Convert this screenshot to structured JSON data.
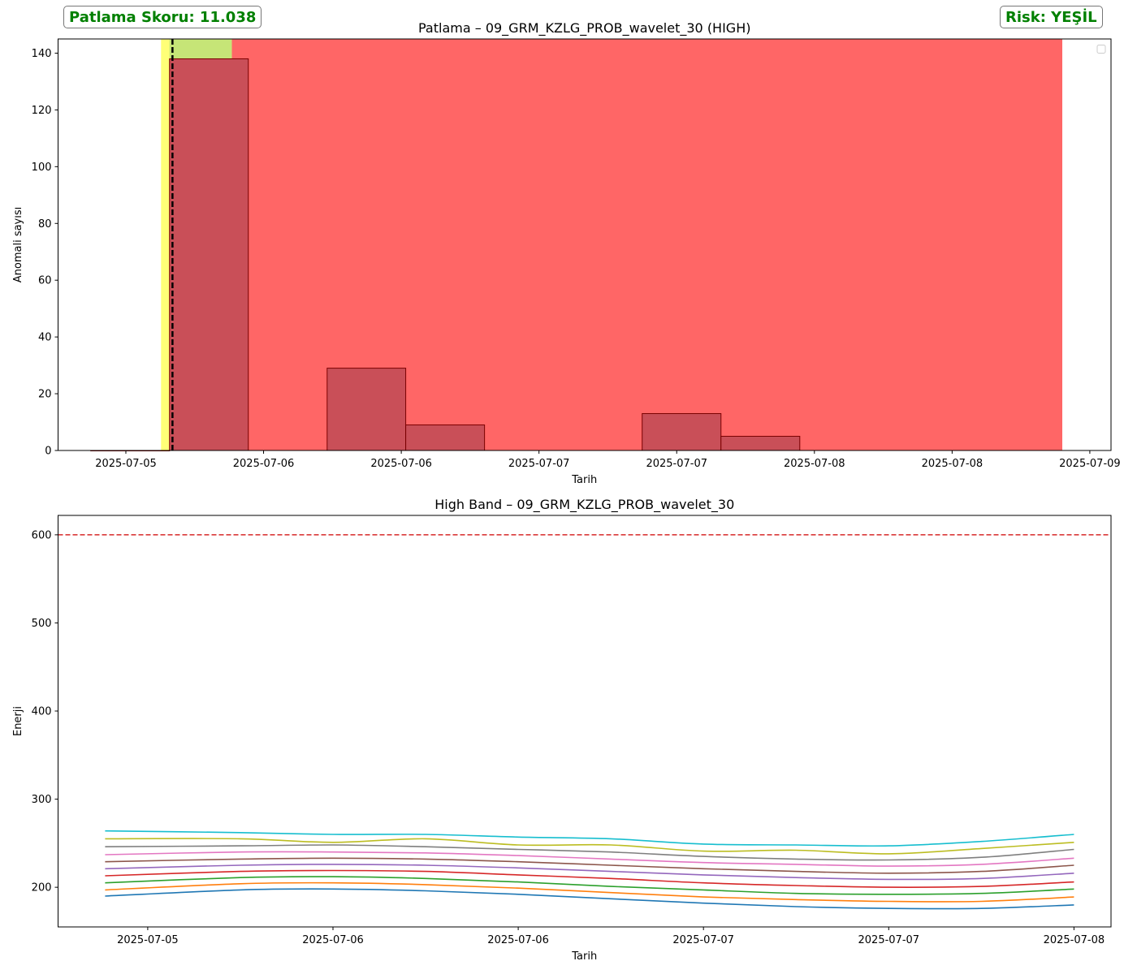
{
  "badges": {
    "score": "Patlama Skoru: 11.038",
    "risk": "Risk: YEŞİL"
  },
  "colors": {
    "badge_text": "#008000",
    "bar_fill": "#c94f58",
    "bar_edge": "#7a0000",
    "span_red": "#ff6666",
    "span_yellow": "#ffff77",
    "span_green": "#c6e577",
    "threshold": "#d62728"
  },
  "chart_data": [
    {
      "type": "bar",
      "title": "Patlama – 09_GRM_KZLG_PROB_wavelet_30 (HIGH)",
      "xlabel": "Tarih",
      "ylabel": "Anomali sayısı",
      "x_unit": "days since 2025-07-05 00:00",
      "xlim": [
        -0.32,
        4.65
      ],
      "ylim": [
        0,
        145
      ],
      "yticks": [
        0,
        20,
        40,
        60,
        80,
        100,
        120,
        140
      ],
      "xticks": [
        {
          "pos": 0.0,
          "label": "2025-07-05"
        },
        {
          "pos": 0.65,
          "label": "2025-07-06"
        },
        {
          "pos": 1.3,
          "label": "2025-07-06"
        },
        {
          "pos": 1.95,
          "label": "2025-07-07"
        },
        {
          "pos": 2.6,
          "label": "2025-07-07"
        },
        {
          "pos": 3.25,
          "label": "2025-07-08"
        },
        {
          "pos": 3.9,
          "label": "2025-07-08"
        },
        {
          "pos": 4.55,
          "label": "2025-07-09"
        }
      ],
      "bars": [
        {
          "x0": -0.166,
          "x1": 0.206,
          "value": 0
        },
        {
          "x0": 0.206,
          "x1": 0.578,
          "value": 138
        },
        {
          "x0": 0.95,
          "x1": 1.321,
          "value": 29
        },
        {
          "x0": 1.321,
          "x1": 1.693,
          "value": 9
        },
        {
          "x0": 2.437,
          "x1": 2.809,
          "value": 13
        },
        {
          "x0": 2.809,
          "x1": 3.181,
          "value": 5
        }
      ],
      "spans": [
        {
          "kind": "yellow",
          "x0": 0.166,
          "x1": 0.5
        },
        {
          "kind": "red",
          "x0": 0.5,
          "x1": 4.42
        },
        {
          "kind": "green",
          "x0": 0.206,
          "x1": 0.5
        }
      ],
      "vline": 0.22,
      "grid": false,
      "legend": "top-right"
    },
    {
      "type": "line",
      "title": "High Band – 09_GRM_KZLG_PROB_wavelet_30",
      "xlabel": "Tarih",
      "ylabel": "Enerji",
      "x_unit": "days since 2025-07-05 00:00",
      "xlim": [
        -0.484,
        5.2
      ],
      "ylim": [
        155,
        622
      ],
      "yticks": [
        200,
        300,
        400,
        500,
        600
      ],
      "xticks": [
        {
          "pos": 0.0,
          "label": "2025-07-05"
        },
        {
          "pos": 1.0,
          "label": "2025-07-06"
        },
        {
          "pos": 2.0,
          "label": "2025-07-06"
        },
        {
          "pos": 3.0,
          "label": "2025-07-07"
        },
        {
          "pos": 4.0,
          "label": "2025-07-07"
        },
        {
          "pos": 5.0,
          "label": "2025-07-08"
        }
      ],
      "threshold": 600,
      "x": [
        -0.23,
        0.5,
        1.0,
        1.5,
        2.0,
        2.5,
        3.0,
        3.5,
        4.0,
        4.5,
        5.0
      ],
      "series": [
        {
          "color": "#1f77b4",
          "values": [
            190,
            197,
            198,
            196,
            192,
            187,
            182,
            178,
            176,
            176,
            180
          ]
        },
        {
          "color": "#ff7f0e",
          "values": [
            197,
            204,
            205,
            203,
            199,
            194,
            189,
            186,
            184,
            184,
            189
          ]
        },
        {
          "color": "#2ca02c",
          "values": [
            205,
            211,
            212,
            210,
            206,
            201,
            197,
            193,
            192,
            193,
            198
          ]
        },
        {
          "color": "#d62728",
          "values": [
            213,
            218,
            219,
            218,
            214,
            210,
            205,
            202,
            200,
            201,
            206
          ]
        },
        {
          "color": "#9467bd",
          "values": [
            221,
            225,
            226,
            225,
            222,
            218,
            214,
            211,
            209,
            210,
            216
          ]
        },
        {
          "color": "#8c564b",
          "values": [
            229,
            232,
            233,
            232,
            229,
            225,
            221,
            218,
            216,
            218,
            225
          ]
        },
        {
          "color": "#e377c2",
          "values": [
            237,
            240,
            240,
            239,
            236,
            232,
            228,
            226,
            224,
            226,
            233
          ]
        },
        {
          "color": "#7f7f7f",
          "values": [
            246,
            247,
            248,
            246,
            243,
            240,
            235,
            232,
            231,
            234,
            243
          ]
        },
        {
          "color": "#bcbd22",
          "values": [
            255,
            255,
            251,
            255,
            248,
            248,
            241,
            242,
            238,
            244,
            251
          ]
        },
        {
          "color": "#17becf",
          "values": [
            264,
            262,
            260,
            260,
            257,
            255,
            249,
            248,
            247,
            252,
            260
          ]
        }
      ],
      "grid": false
    }
  ]
}
